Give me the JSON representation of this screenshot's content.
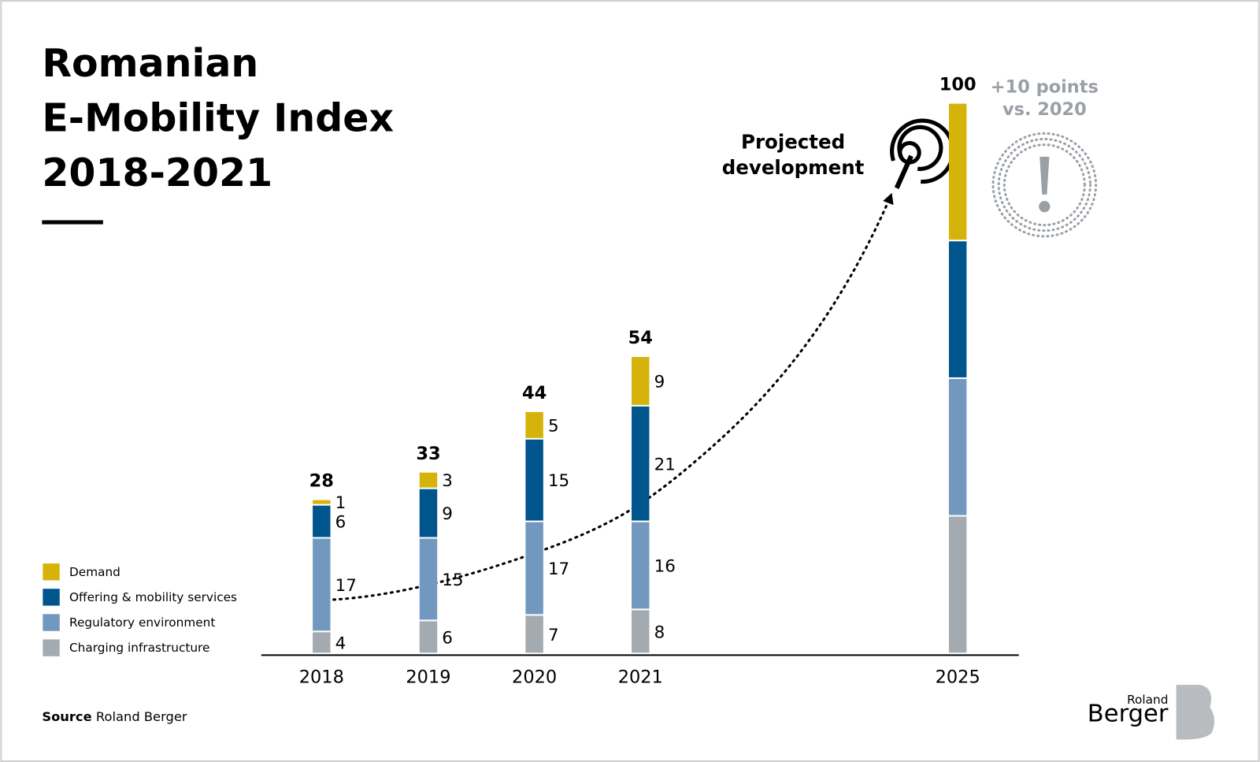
{
  "chart_data": {
    "type": "stacked_bar",
    "title": [
      "Romanian",
      "E-Mobility Index",
      "2018-2021"
    ],
    "categories": [
      "2018",
      "2019",
      "2020",
      "2021",
      "2025"
    ],
    "series": [
      {
        "name": "Charging infrastructure",
        "color": "#a3abb1",
        "values": [
          4,
          6,
          7,
          8,
          25
        ],
        "value_labels": [
          "4",
          "6",
          "7",
          "8",
          null
        ]
      },
      {
        "name": "Regulatory environment",
        "color": "#7398c0",
        "values": [
          17,
          15,
          17,
          16,
          25
        ],
        "value_labels": [
          "17",
          "15",
          "17",
          "16",
          null
        ]
      },
      {
        "name": "Offering & mobility services",
        "color": "#00568c",
        "values": [
          6,
          9,
          15,
          21,
          25
        ],
        "value_labels": [
          "6",
          "9",
          "15",
          "21",
          null
        ]
      },
      {
        "name": "Demand",
        "color": "#d6b30a",
        "values": [
          1,
          3,
          5,
          9,
          25
        ],
        "value_labels": [
          "1",
          "3",
          "5",
          "9",
          null
        ]
      }
    ],
    "totals": [
      28,
      33,
      44,
      54,
      100
    ],
    "annotation": [
      "Projected",
      "development"
    ],
    "callout": [
      "+10 points",
      "vs. 2020"
    ],
    "source": {
      "label": "Source",
      "text": "Roland Berger"
    },
    "logo": [
      "Roland",
      "Berger"
    ]
  }
}
